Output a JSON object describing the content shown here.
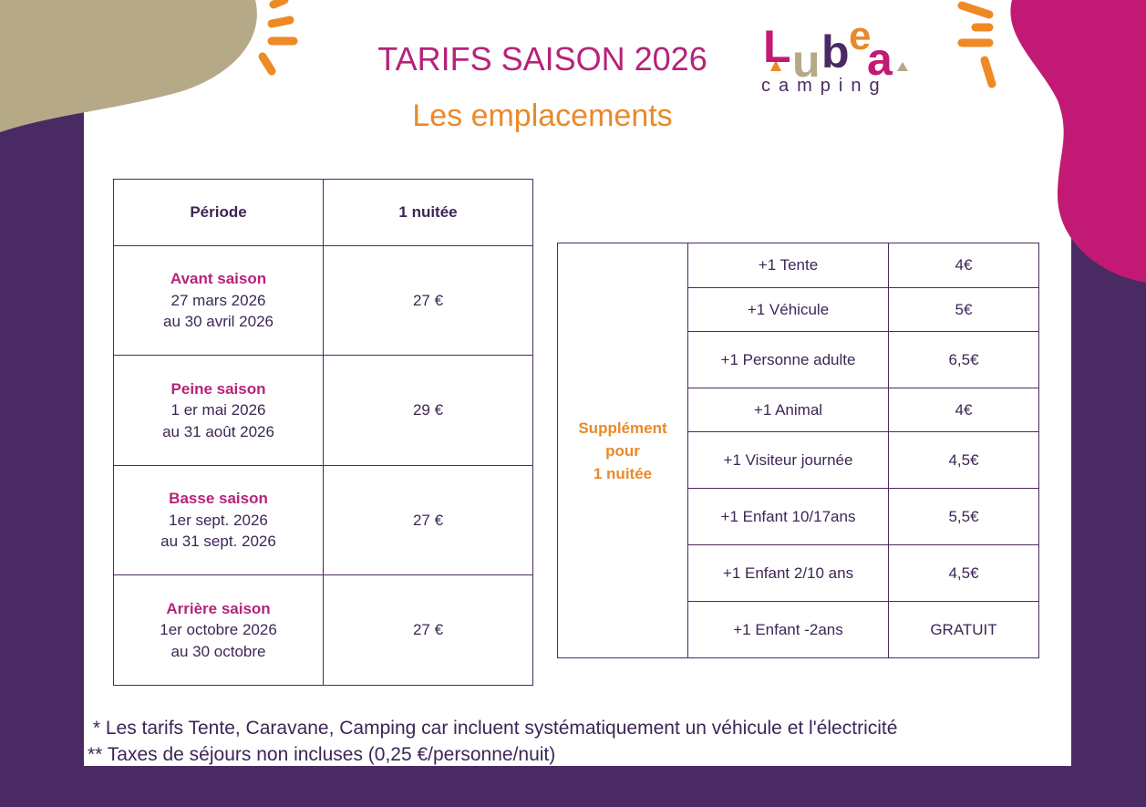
{
  "header": {
    "title": "TARIFS SAISON 2026",
    "subtitle": "Les emplacements"
  },
  "logo": {
    "letters": [
      "L",
      "u",
      "b",
      "e",
      "a"
    ],
    "tagline": "camping"
  },
  "periods_table": {
    "columns": [
      "Période",
      "1 nuitée"
    ],
    "rows": [
      {
        "season": "Avant saison",
        "dates": [
          "27 mars 2026",
          "au 30 avril 2026"
        ],
        "price": "27 €"
      },
      {
        "season": "Peine saison",
        "dates": [
          "1 er mai 2026",
          "au 31 août 2026"
        ],
        "price": "29 €"
      },
      {
        "season": "Basse saison",
        "dates": [
          "1er sept. 2026",
          "au 31 sept. 2026"
        ],
        "price": "27 €"
      },
      {
        "season": "Arrière saison",
        "dates": [
          "1er octobre 2026",
          "au 30 octobre"
        ],
        "price": "27 €"
      }
    ]
  },
  "supplements_table": {
    "label": [
      "Supplément",
      "pour",
      "1 nuitée"
    ],
    "rows": [
      [
        "+1 Tente",
        "4€"
      ],
      [
        "+1 Véhicule",
        "5€"
      ],
      [
        "+1 Personne adulte",
        "6,5€"
      ],
      [
        "+1 Animal",
        "4€"
      ],
      [
        "+1 Visiteur journée",
        "4,5€"
      ],
      [
        "+1 Enfant 10/17ans",
        "5,5€"
      ],
      [
        "+1 Enfant 2/10 ans",
        "4,5€"
      ],
      [
        "+1 Enfant -2ans",
        "GRATUIT"
      ]
    ]
  },
  "footnotes": [
    "* Les tarifs Tente, Caravane, Camping car incluent systématiquement un véhicule et l'électricité",
    "** Taxes de séjours non incluses (0,25 €/personne/nuit)"
  ]
}
